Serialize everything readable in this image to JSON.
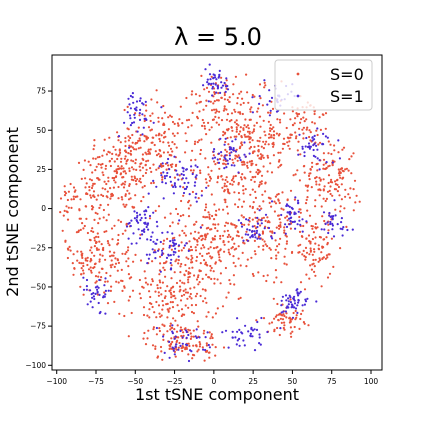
{
  "chart_data": {
    "type": "scatter",
    "title": "λ = 5.0",
    "xlabel": "1st tSNE component",
    "ylabel": "2nd tSNE component",
    "xlim": [
      -103,
      107
    ],
    "ylim": [
      -103,
      98
    ],
    "xticks": [
      -100,
      -75,
      -50,
      -25,
      0,
      25,
      50,
      75,
      100
    ],
    "yticks": [
      -100,
      -75,
      -50,
      -25,
      0,
      25,
      50,
      75
    ],
    "grid": false,
    "legend_position": "top-right",
    "series": [
      {
        "name": "S=0",
        "color": "#e8513b",
        "clusters": [
          {
            "cx": -60,
            "cy": 25,
            "sx": 12,
            "sy": 14,
            "n": 180
          },
          {
            "cx": -75,
            "cy": -30,
            "sx": 12,
            "sy": 16,
            "n": 200
          },
          {
            "cx": -35,
            "cy": 40,
            "sx": 12,
            "sy": 14,
            "n": 160
          },
          {
            "cx": -25,
            "cy": -55,
            "sx": 14,
            "sy": 14,
            "n": 200
          },
          {
            "cx": -5,
            "cy": -20,
            "sx": 14,
            "sy": 14,
            "n": 200
          },
          {
            "cx": 10,
            "cy": 30,
            "sx": 14,
            "sy": 16,
            "n": 180
          },
          {
            "cx": 35,
            "cy": -10,
            "sx": 12,
            "sy": 16,
            "n": 160
          },
          {
            "cx": 30,
            "cy": 45,
            "sx": 12,
            "sy": 14,
            "n": 150
          },
          {
            "cx": 75,
            "cy": 20,
            "sx": 10,
            "sy": 14,
            "n": 150
          },
          {
            "cx": 65,
            "cy": -25,
            "sx": 6,
            "sy": 10,
            "n": 90
          },
          {
            "cx": 45,
            "cy": -70,
            "sx": 6,
            "sy": 5,
            "n": 60
          },
          {
            "cx": -20,
            "cy": -85,
            "sx": 12,
            "sy": 6,
            "n": 110
          },
          {
            "cx": -85,
            "cy": 5,
            "sx": 8,
            "sy": 10,
            "n": 60
          },
          {
            "cx": 60,
            "cy": 55,
            "sx": 8,
            "sy": 10,
            "n": 70
          },
          {
            "cx": 5,
            "cy": 70,
            "sx": 10,
            "sy": 8,
            "n": 80
          }
        ]
      },
      {
        "name": "S=1",
        "color": "#4a2bd6",
        "clusters": [
          {
            "cx": -50,
            "cy": 60,
            "sx": 6,
            "sy": 8,
            "n": 40
          },
          {
            "cx": 0,
            "cy": 80,
            "sx": 6,
            "sy": 5,
            "n": 40
          },
          {
            "cx": -20,
            "cy": 20,
            "sx": 8,
            "sy": 6,
            "n": 60
          },
          {
            "cx": 10,
            "cy": 35,
            "sx": 6,
            "sy": 6,
            "n": 40
          },
          {
            "cx": -45,
            "cy": -10,
            "sx": 6,
            "sy": 6,
            "n": 50
          },
          {
            "cx": -30,
            "cy": -25,
            "sx": 6,
            "sy": 6,
            "n": 50
          },
          {
            "cx": 25,
            "cy": -15,
            "sx": 6,
            "sy": 5,
            "n": 40
          },
          {
            "cx": 50,
            "cy": -5,
            "sx": 6,
            "sy": 6,
            "n": 40
          },
          {
            "cx": 65,
            "cy": 40,
            "sx": 6,
            "sy": 6,
            "n": 40
          },
          {
            "cx": 40,
            "cy": 70,
            "sx": 5,
            "sy": 5,
            "n": 30
          },
          {
            "cx": 50,
            "cy": -60,
            "sx": 5,
            "sy": 4,
            "n": 50
          },
          {
            "cx": 20,
            "cy": -80,
            "sx": 10,
            "sy": 5,
            "n": 40
          },
          {
            "cx": -20,
            "cy": -85,
            "sx": 8,
            "sy": 5,
            "n": 40
          },
          {
            "cx": -75,
            "cy": -55,
            "sx": 8,
            "sy": 6,
            "n": 40
          },
          {
            "cx": 75,
            "cy": -10,
            "sx": 6,
            "sy": 6,
            "n": 30
          }
        ]
      }
    ]
  }
}
